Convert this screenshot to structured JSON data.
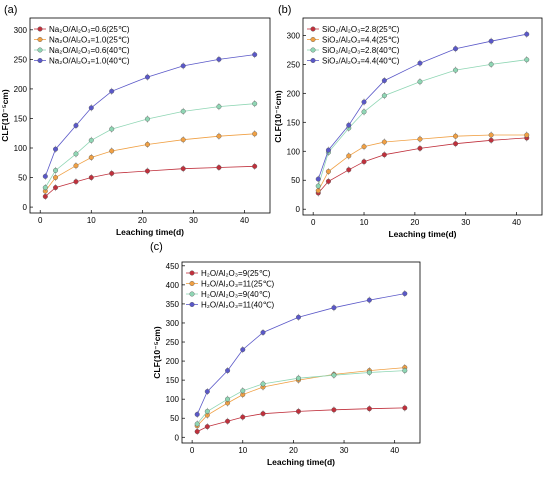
{
  "chart_data": [
    {
      "type": "line",
      "panel_label": "(a)",
      "xlabel": "Leaching time(d)",
      "ylabel": "CLF(10⁻⁵cm)",
      "xlim": [
        -2,
        45
      ],
      "ylim": [
        -10,
        320
      ],
      "xticks": [
        0,
        10,
        20,
        30,
        40
      ],
      "yticks": [
        0,
        50,
        100,
        150,
        200,
        250,
        300
      ],
      "x": [
        1,
        3,
        7,
        10,
        14,
        21,
        28,
        35,
        42
      ],
      "legend_placement": "top-left",
      "grid": false,
      "series": [
        {
          "name": "Na₂O/Al₂O₃=0.6(25℃)",
          "color": "#c0303c",
          "values": [
            18,
            33,
            43,
            50,
            57,
            61,
            65,
            67,
            69
          ]
        },
        {
          "name": "Na₂O/Al₂O₃=1.0(25℃)",
          "color": "#f0a044",
          "values": [
            27,
            50,
            70,
            84,
            95,
            106,
            114,
            120,
            124
          ]
        },
        {
          "name": "Na₂O/Al₂O₃=0.6(40℃)",
          "color": "#8fd6b4",
          "values": [
            33,
            62,
            90,
            113,
            132,
            149,
            162,
            170,
            175
          ]
        },
        {
          "name": "Na₂O/Al₂O₃=1.0(40℃)",
          "color": "#5a58c8",
          "values": [
            52,
            98,
            138,
            168,
            196,
            220,
            239,
            250,
            258
          ]
        }
      ]
    },
    {
      "type": "line",
      "panel_label": "(b)",
      "xlabel": "Leaching time(d)",
      "ylabel": "CLF(10⁻⁵cm)",
      "xlim": [
        -2,
        45
      ],
      "ylim": [
        -10,
        330
      ],
      "xticks": [
        0,
        10,
        20,
        30,
        40
      ],
      "yticks": [
        0,
        50,
        100,
        150,
        200,
        250,
        300
      ],
      "x": [
        1,
        3,
        7,
        10,
        14,
        21,
        28,
        35,
        42
      ],
      "legend_placement": "top-left",
      "grid": false,
      "series": [
        {
          "name": "SiO₂/Al₂O₃=2.8(25℃)",
          "color": "#c0303c",
          "values": [
            28,
            48,
            68,
            82,
            94,
            105,
            113,
            119,
            123
          ]
        },
        {
          "name": "SiO₂/Al₂O₃=4.4(25℃)",
          "color": "#f0a044",
          "values": [
            32,
            65,
            92,
            108,
            116,
            121,
            126,
            128,
            128
          ]
        },
        {
          "name": "SiO₂/Al₂O₃=2.8(40℃)",
          "color": "#8fd6b4",
          "values": [
            40,
            98,
            140,
            168,
            196,
            220,
            240,
            250,
            258
          ]
        },
        {
          "name": "SiO₂/Al₂O₃=4.4(40℃)",
          "color": "#5a58c8",
          "values": [
            52,
            102,
            145,
            185,
            222,
            252,
            277,
            290,
            302
          ]
        }
      ]
    },
    {
      "type": "line",
      "panel_label": "(c)",
      "xlabel": "Leaching time(d)",
      "ylabel": "CLF(10⁻⁵cm)",
      "xlim": [
        -2,
        45
      ],
      "ylim": [
        -15,
        460
      ],
      "xticks": [
        0,
        10,
        20,
        30,
        40
      ],
      "yticks": [
        0,
        50,
        100,
        150,
        200,
        250,
        300,
        350,
        400,
        450
      ],
      "x": [
        1,
        3,
        7,
        10,
        14,
        21,
        28,
        35,
        42
      ],
      "legend_placement": "top-left",
      "grid": false,
      "series": [
        {
          "name": "H₂O/Al₂O₃=9(25℃)",
          "color": "#c0303c",
          "values": [
            15,
            28,
            42,
            53,
            62,
            68,
            72,
            75,
            77
          ]
        },
        {
          "name": "H₂O/Al₂O₃=11(25℃)",
          "color": "#f0a044",
          "values": [
            30,
            58,
            90,
            112,
            132,
            150,
            165,
            175,
            183
          ]
        },
        {
          "name": "H₂O/Al₂O₃=9(40℃)",
          "color": "#8fd6b4",
          "values": [
            35,
            68,
            100,
            122,
            140,
            155,
            163,
            170,
            175
          ]
        },
        {
          "name": "H₂O/Al₂O₃=11(40℃)",
          "color": "#5a58c8",
          "values": [
            60,
            120,
            175,
            230,
            275,
            315,
            340,
            360,
            377
          ]
        }
      ]
    }
  ]
}
